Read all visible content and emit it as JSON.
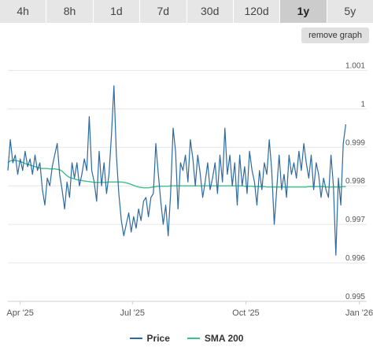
{
  "tabs": [
    {
      "label": "4h",
      "active": false
    },
    {
      "label": "8h",
      "active": false
    },
    {
      "label": "1d",
      "active": false
    },
    {
      "label": "7d",
      "active": false
    },
    {
      "label": "30d",
      "active": false
    },
    {
      "label": "120d",
      "active": false
    },
    {
      "label": "1y",
      "active": true
    },
    {
      "label": "5y",
      "active": false
    }
  ],
  "remove_graph_label": "remove graph",
  "colors": {
    "price": "#2b6aa3",
    "sma": "#3cc18a",
    "grid": "#e6e6e6",
    "axis_text": "#555555"
  },
  "chart_data": {
    "type": "line",
    "x_ticks": [
      "Apr '25",
      "Jul '25",
      "Oct '25",
      "Jan '26"
    ],
    "y_ticks": [
      0.995,
      0.996,
      0.997,
      0.998,
      0.999,
      1,
      1.001
    ],
    "y_tick_labels": [
      "0.995",
      "0.996",
      "0.997",
      "0.998",
      "0.999",
      "1",
      "1.001"
    ],
    "ylim": [
      0.995,
      1.0015
    ],
    "x_range": [
      "2025-03-22",
      "2026-01-07"
    ],
    "grid": true,
    "legend_position": "bottom",
    "series": [
      {
        "name": "Price",
        "start": "2025-03-22",
        "step_days": 2,
        "values": [
          0.9984,
          0.9992,
          0.9986,
          0.9988,
          0.9983,
          0.9987,
          0.9984,
          0.9989,
          0.9985,
          0.9987,
          0.9983,
          0.9988,
          0.9984,
          0.9986,
          0.9979,
          0.9975,
          0.9982,
          0.998,
          0.9985,
          0.9988,
          0.9991,
          0.9983,
          0.9979,
          0.9974,
          0.9981,
          0.9977,
          0.9986,
          0.9982,
          0.9986,
          0.998,
          0.9983,
          0.9987,
          0.9984,
          0.9998,
          0.9984,
          0.9981,
          0.9976,
          0.9989,
          0.998,
          0.9986,
          0.9978,
          0.9983,
          0.9993,
          1.0006,
          0.9988,
          0.9978,
          0.9971,
          0.9967,
          0.997,
          0.9973,
          0.9968,
          0.9972,
          0.9969,
          0.9974,
          0.9971,
          0.9976,
          0.9977,
          0.9972,
          0.9977,
          0.9978,
          0.9991,
          0.9983,
          0.9976,
          0.997,
          0.9975,
          0.9967,
          0.9978,
          0.9995,
          0.9989,
          0.9974,
          0.9986,
          0.9984,
          0.9988,
          0.9981,
          0.9992,
          0.9987,
          0.998,
          0.9988,
          0.9983,
          0.9977,
          0.9981,
          0.9986,
          0.9979,
          0.9982,
          0.9986,
          0.9978,
          0.9988,
          0.9981,
          0.9995,
          0.9983,
          0.9988,
          0.998,
          0.9986,
          0.9975,
          0.9988,
          0.998,
          0.9985,
          0.9978,
          0.9989,
          0.9984,
          0.9981,
          0.9975,
          0.9984,
          0.9979,
          0.9986,
          0.9983,
          0.9992,
          0.9984,
          0.997,
          0.9979,
          0.9988,
          0.9979,
          0.9983,
          0.9977,
          0.9988,
          0.9983,
          0.9986,
          0.9982,
          0.9989,
          0.9984,
          0.9991,
          0.9986,
          0.9982,
          0.9988,
          0.9979,
          0.9986,
          0.9983,
          0.9977,
          0.9982,
          0.9979,
          0.9977,
          0.9988,
          0.998,
          0.9962,
          0.9982,
          0.9975,
          0.9991,
          0.9996
        ]
      },
      {
        "name": "SMA 200",
        "start": "2025-03-22",
        "step_days": 2,
        "values": [
          0.9986,
          0.99865,
          0.99867,
          0.99866,
          0.99865,
          0.99863,
          0.99861,
          0.99858,
          0.99856,
          0.99854,
          0.99852,
          0.9985,
          0.99848,
          0.99846,
          0.99845,
          0.99845,
          0.99845,
          0.99844,
          0.99844,
          0.99844,
          0.99843,
          0.99842,
          0.99838,
          0.99832,
          0.99826,
          0.99822,
          0.9982,
          0.99818,
          0.99816,
          0.99815,
          0.99814,
          0.99813,
          0.99812,
          0.99811,
          0.9981,
          0.99809,
          0.99809,
          0.99809,
          0.99809,
          0.99809,
          0.99809,
          0.9981,
          0.9981,
          0.9981,
          0.9981,
          0.9981,
          0.9981,
          0.99809,
          0.99808,
          0.99806,
          0.99804,
          0.99801,
          0.99799,
          0.99797,
          0.99796,
          0.99795,
          0.99795,
          0.99795,
          0.99796,
          0.99797,
          0.99798,
          0.99799,
          0.99799,
          0.99799,
          0.99799,
          0.99799,
          0.998,
          0.998,
          0.998,
          0.998,
          0.998,
          0.998,
          0.998,
          0.998,
          0.998,
          0.998,
          0.998,
          0.998,
          0.998,
          0.998,
          0.998,
          0.998,
          0.998,
          0.998,
          0.998,
          0.998,
          0.998,
          0.998,
          0.998,
          0.998,
          0.998,
          0.998,
          0.998,
          0.998,
          0.998,
          0.998,
          0.99799,
          0.99799,
          0.99799,
          0.99799,
          0.99798,
          0.99798,
          0.99798,
          0.99798,
          0.99798,
          0.99797,
          0.99797,
          0.99797,
          0.99797,
          0.99797,
          0.99797,
          0.99797,
          0.99797,
          0.99797,
          0.99797,
          0.99797,
          0.99797,
          0.99797,
          0.99797,
          0.99797,
          0.99797,
          0.99797,
          0.99798,
          0.99798,
          0.99798,
          0.99798,
          0.99798,
          0.99798,
          0.99798,
          0.99797,
          0.99797,
          0.99797,
          0.99797,
          0.99797,
          0.99797,
          0.99797,
          0.99798,
          0.99798
        ]
      }
    ]
  }
}
